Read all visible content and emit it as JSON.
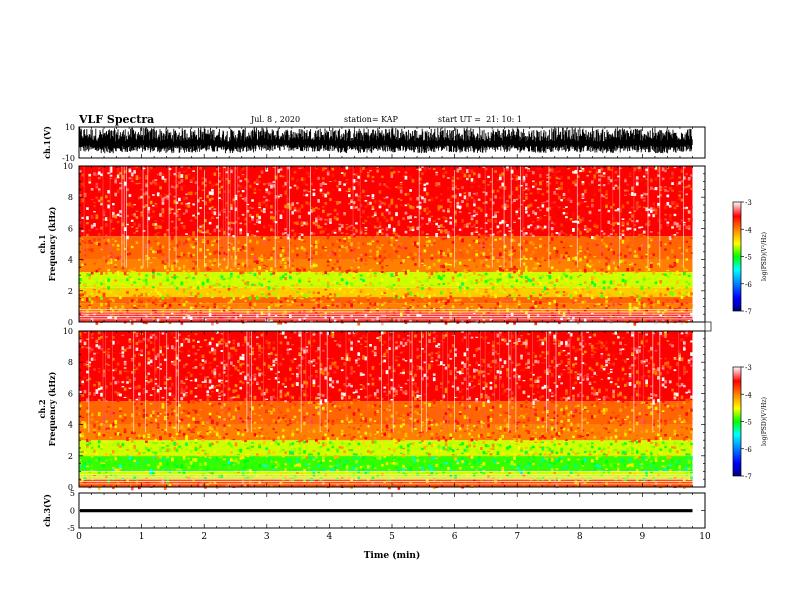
{
  "header": {
    "title": "VLF Spectra",
    "date": "Jul. 8 , 2020",
    "station": "station= KAP",
    "start": "start UT =  21: 10: 1"
  },
  "chart_data": [
    {
      "type": "line",
      "panel": "ch1-waveform",
      "ylabel": "ch.1(V)",
      "ylim": [
        -10,
        10
      ],
      "yticks": [
        "10",
        "-10"
      ],
      "x": [
        0,
        0.5,
        1,
        1.5,
        2,
        2.5,
        3,
        3.5,
        4,
        4.5,
        5,
        5.5,
        6,
        6.5,
        7,
        7.5,
        8,
        8.5,
        9,
        9.5,
        9.8
      ],
      "envelope_upper": [
        10,
        9,
        10,
        9,
        10,
        9,
        10,
        9,
        10,
        9,
        10,
        9,
        10,
        9,
        10,
        9,
        10,
        9,
        10,
        9,
        10
      ],
      "envelope_lower": [
        -9,
        -10,
        -9,
        -10,
        -9,
        -10,
        -9,
        -8,
        -9,
        -10,
        -9,
        -10,
        -9,
        -10,
        -9,
        -10,
        -9,
        -10,
        -9,
        -10,
        -9
      ],
      "color": "#000000"
    },
    {
      "type": "heatmap",
      "panel": "ch1-spectrogram",
      "ylabel": "Frequency (kHz)",
      "channel_label": "ch.1",
      "ylim": [
        0,
        10
      ],
      "yticks": [
        "0",
        "2",
        "4",
        "6",
        "8",
        "10"
      ],
      "xlim": [
        0,
        10
      ],
      "data_end_min": 9.8,
      "freq_bands_khz": [
        0,
        0.6,
        1.2,
        1.6,
        2.2,
        3.2,
        4.0,
        5.5,
        10
      ],
      "band_level_log": [
        -3.4,
        -4.0,
        -3.9,
        -4.3,
        -4.6,
        -4.0,
        -3.9,
        -3.5
      ],
      "colorbar": {
        "label": "log(PSD)(V²/Hz)",
        "ticks": [
          "-3",
          "-4",
          "-5",
          "-6",
          "-7"
        ],
        "range": [
          -7,
          -3
        ]
      }
    },
    {
      "type": "heatmap",
      "panel": "ch2-spectrogram",
      "ylabel": "Frequency (kHz)",
      "channel_label": "ch.2",
      "ylim": [
        0,
        10
      ],
      "yticks": [
        "0",
        "2",
        "4",
        "6",
        "8",
        "10"
      ],
      "xlim": [
        0,
        10
      ],
      "data_end_min": 9.8,
      "freq_bands_khz": [
        0,
        0.5,
        1.0,
        2.0,
        3.0,
        4.0,
        5.5,
        10
      ],
      "band_level_log": [
        -3.8,
        -4.6,
        -4.9,
        -4.6,
        -4.0,
        -3.9,
        -3.5
      ],
      "colorbar": {
        "label": "log(PSD)(V²/Hz)",
        "ticks": [
          "-3",
          "-4",
          "-5",
          "-6",
          "-7"
        ],
        "range": [
          -7,
          -3
        ]
      }
    },
    {
      "type": "line",
      "panel": "ch3-waveform",
      "ylabel": "ch.3(V)",
      "ylim": [
        -5,
        5
      ],
      "yticks": [
        "5",
        "0",
        "-5"
      ],
      "x": [
        0,
        9.8
      ],
      "envelope_upper": [
        0.4,
        0.4
      ],
      "envelope_lower": [
        -0.5,
        -0.5
      ],
      "color": "#000000"
    }
  ],
  "xaxis": {
    "label": "Time (min)",
    "ticks": [
      "0",
      "1",
      "2",
      "3",
      "4",
      "5",
      "6",
      "7",
      "8",
      "9",
      "10"
    ],
    "xlim": [
      0,
      10
    ]
  },
  "colors": {
    "colormap": [
      "#000080",
      "#0000ff",
      "#0080ff",
      "#00ffff",
      "#00ff00",
      "#ffff00",
      "#ff8000",
      "#ff0000",
      "#ffffff"
    ]
  }
}
